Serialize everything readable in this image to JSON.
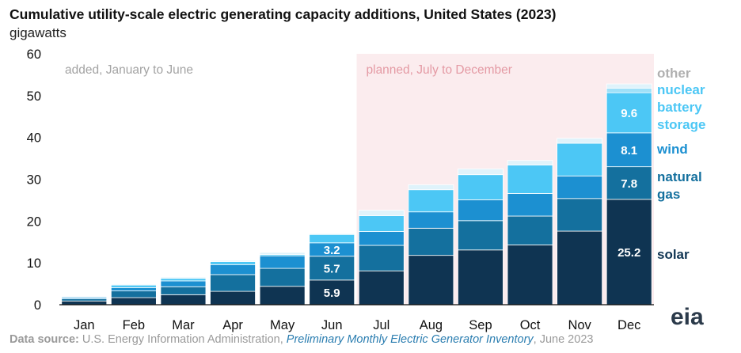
{
  "title": "Cumulative utility-scale electric generating capacity additions, United States (2023)",
  "units_label": "gigawatts",
  "footer": {
    "source_label": "Data source:",
    "source_text": "U.S. Energy Information Administration,",
    "report_title": "Preliminary Monthly Electric Generator Inventory",
    "date": ", June 2023"
  },
  "logo_text": "eia",
  "colors": {
    "solar": "#0f3452",
    "natural_gas": "#14709e",
    "wind": "#1c90d1",
    "battery_storage": "#4cc7f5",
    "nuclear": "#9fe0f8",
    "other": "#dff3fb",
    "planned_shade": "#fbecee",
    "added_text": "#a3a3a3",
    "planned_text": "#e49aa4",
    "legend_other": "#b0b0b0"
  },
  "chart_data": {
    "type": "bar",
    "stacked": true,
    "categories": [
      "Jan",
      "Feb",
      "Mar",
      "Apr",
      "May",
      "Jun",
      "Jul",
      "Aug",
      "Sep",
      "Oct",
      "Nov",
      "Dec"
    ],
    "series": [
      {
        "name": "solar",
        "values": [
          0.9,
          1.7,
          2.4,
          3.2,
          4.4,
          5.9,
          8.1,
          11.8,
          13.1,
          14.3,
          17.6,
          25.2
        ]
      },
      {
        "name": "natural gas",
        "values": [
          0.5,
          1.6,
          1.9,
          4.0,
          4.3,
          5.7,
          6.1,
          6.5,
          7.0,
          6.9,
          7.8,
          7.8
        ]
      },
      {
        "name": "wind",
        "values": [
          0.3,
          0.8,
          1.4,
          2.4,
          3.0,
          3.2,
          3.3,
          3.9,
          5.0,
          5.4,
          5.4,
          8.1
        ]
      },
      {
        "name": "battery storage",
        "values": [
          0.2,
          0.6,
          0.6,
          0.7,
          0.3,
          2.0,
          3.8,
          5.3,
          6.0,
          6.8,
          7.8,
          9.6
        ]
      },
      {
        "name": "nuclear",
        "values": [
          0.0,
          0.0,
          0.0,
          0.0,
          0.0,
          0.0,
          0.0,
          0.0,
          0.0,
          0.0,
          0.0,
          1.1
        ]
      },
      {
        "name": "other",
        "values": [
          0.2,
          0.2,
          0.3,
          0.3,
          0.5,
          0.2,
          1.3,
          1.2,
          1.4,
          1.1,
          1.2,
          1.0
        ]
      }
    ],
    "data_labels": [
      {
        "month": "Jun",
        "series": "solar",
        "text": "5.9"
      },
      {
        "month": "Jun",
        "series": "natural gas",
        "text": "5.7"
      },
      {
        "month": "Jun",
        "series": "wind",
        "text": "3.2"
      },
      {
        "month": "Dec",
        "series": "solar",
        "text": "25.2"
      },
      {
        "month": "Dec",
        "series": "natural gas",
        "text": "7.8"
      },
      {
        "month": "Dec",
        "series": "wind",
        "text": "8.1"
      },
      {
        "month": "Dec",
        "series": "battery storage",
        "text": "9.6"
      }
    ],
    "ylim": [
      0,
      60
    ],
    "yticks": [
      0,
      10,
      20,
      30,
      40,
      50,
      60
    ],
    "grid": false,
    "annotations": {
      "added": "added, January to June",
      "planned": "planned, July to December"
    },
    "planned_region": [
      "Jul",
      "Dec"
    ],
    "legend": [
      {
        "series": "other",
        "lines": [
          "other"
        ]
      },
      {
        "series": "nuclear",
        "lines": [
          "nuclear"
        ]
      },
      {
        "series": "battery storage",
        "lines": [
          "battery",
          "storage"
        ]
      },
      {
        "series": "wind",
        "lines": [
          "wind"
        ]
      },
      {
        "series": "natural gas",
        "lines": [
          "natural",
          "gas"
        ]
      },
      {
        "series": "solar",
        "lines": [
          "solar"
        ]
      }
    ],
    "legend_placement": "right"
  }
}
